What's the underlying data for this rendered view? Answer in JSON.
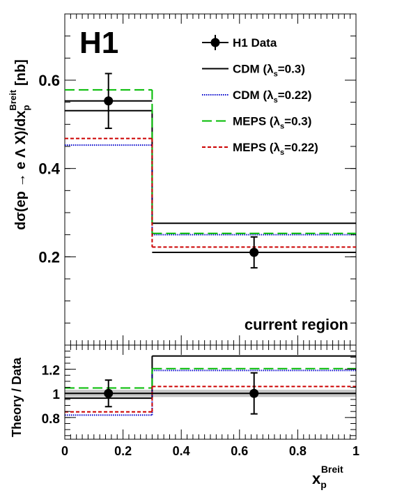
{
  "chart_data": [
    {
      "type": "step",
      "panel": "main",
      "experiment_label": "H1",
      "region_label": "current region",
      "ylabel": "dσ(ep → e Λ X)/dx_p^Breit [nb]",
      "ylabel_parts": {
        "main": "dσ(ep → e Λ X)/dx",
        "sub": "p",
        "sup": "Breit",
        "unit": "[nb]"
      },
      "xlim": [
        0,
        1
      ],
      "ylim": [
        0.0,
        0.75
      ],
      "yticks": [
        0.2,
        0.4,
        0.6
      ],
      "ytick_labels": [
        "0.2",
        "0.4",
        "0.6"
      ],
      "bin_edges": [
        0,
        0.3,
        1.0
      ],
      "data": {
        "name": "H1 Data",
        "x": [
          0.15,
          0.65
        ],
        "y": [
          0.553,
          0.21
        ],
        "yerr": [
          0.062,
          0.035
        ],
        "color": "#000000"
      },
      "series": [
        {
          "name": "CDM (λs=0.3)",
          "legend": {
            "text": "CDM (λ",
            "sub": "s",
            "rest": "=0.3)"
          },
          "values": [
            0.531,
            0.276
          ],
          "color": "#000000",
          "style": "solid"
        },
        {
          "name": "CDM (λs=0.22)",
          "legend": {
            "text": "CDM (λ",
            "sub": "s",
            "rest": "=0.22)"
          },
          "values": [
            0.453,
            0.25
          ],
          "color": "#0000cc",
          "style": "dotted"
        },
        {
          "name": "MEPS (λs=0.3)",
          "legend": {
            "text": "MEPS (λ",
            "sub": "s",
            "rest": "=0.3)"
          },
          "values": [
            0.578,
            0.253
          ],
          "color": "#00bb00",
          "style": "dashed"
        },
        {
          "name": "MEPS (λs=0.22)",
          "legend": {
            "text": "MEPS (λ",
            "sub": "s",
            "rest": "=0.22)"
          },
          "values": [
            0.468,
            0.222
          ],
          "color": "#cc0000",
          "style": "short-dashed"
        }
      ],
      "legend_position": "top-right"
    },
    {
      "type": "step",
      "panel": "ratio",
      "ylabel": "Theory / Data",
      "xlabel": "x_p^Breit",
      "xlabel_parts": {
        "main": "x",
        "sub": "p",
        "sup": "Breit"
      },
      "xlim": [
        0,
        1
      ],
      "ylim": [
        0.62,
        1.4
      ],
      "yticks": [
        0.8,
        1.0,
        1.2
      ],
      "ytick_labels": [
        "0.8",
        "1",
        "1.2"
      ],
      "xticks": [
        0,
        0.2,
        0.4,
        0.6,
        0.8,
        1.0
      ],
      "xtick_labels": [
        "0",
        "0.2",
        "0.4",
        "0.6",
        "0.8",
        "1"
      ],
      "bin_edges": [
        0,
        0.3,
        1.0
      ],
      "data": {
        "x": [
          0.15,
          0.65
        ],
        "y": [
          1.0,
          1.0
        ],
        "yerr": [
          0.11,
          0.17
        ],
        "color": "#000000"
      },
      "uncertainty_band": [
        0.97,
        1.03
      ],
      "series": [
        {
          "name": "CDM (λs=0.3)",
          "values": [
            0.96,
            1.31
          ],
          "color": "#000000",
          "style": "solid"
        },
        {
          "name": "CDM (λs=0.22)",
          "values": [
            0.82,
            1.19
          ],
          "color": "#0000cc",
          "style": "dotted"
        },
        {
          "name": "MEPS (λs=0.3)",
          "values": [
            1.045,
            1.205
          ],
          "color": "#00bb00",
          "style": "dashed"
        },
        {
          "name": "MEPS (λs=0.22)",
          "values": [
            0.847,
            1.057
          ],
          "color": "#cc0000",
          "style": "short-dashed"
        }
      ]
    }
  ]
}
